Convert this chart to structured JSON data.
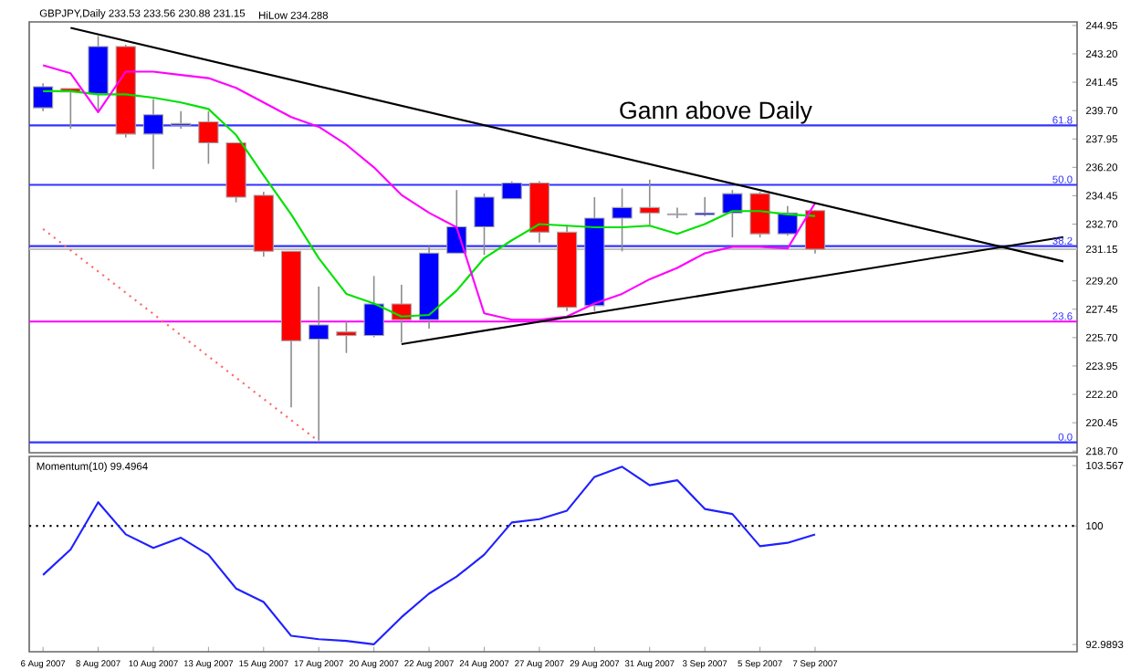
{
  "chart_data": [
    {
      "type": "candlestick",
      "title": "Gann above Daily",
      "annotations": [
        "GBPJPY,Daily  233.53 233.56 230.88 231.15",
        "HiLow 234.288",
        {
          "text": "61.8",
          "y": 238.79
        },
        {
          "text": "50.0",
          "y": 235.12
        },
        {
          "text": "38.2",
          "y": 231.34
        },
        {
          "text": "23.6",
          "y": 226.69
        },
        {
          "text": "0.0",
          "y": 219.24
        }
      ],
      "categories": [
        null,
        null,
        null,
        null,
        null,
        null,
        null,
        null,
        null,
        null,
        null,
        null,
        null,
        null,
        null,
        null,
        null,
        null,
        null,
        null,
        null,
        null,
        null,
        null,
        null,
        null,
        null,
        null,
        null,
        null,
        null,
        null,
        null,
        null,
        null,
        null,
        null,
        null
      ],
      "ohlc": [
        [
          239.87,
          241.39,
          239.66,
          241.17
        ],
        [
          241.06,
          241.06,
          238.58,
          240.85
        ],
        [
          240.74,
          244.3,
          239.66,
          243.65
        ],
        [
          243.65,
          243.76,
          238.04,
          238.25
        ],
        [
          238.25,
          240.41,
          236.09,
          239.44
        ],
        [
          238.79,
          239.66,
          238.58,
          238.9
        ],
        [
          239.01,
          239.66,
          236.42,
          237.71
        ],
        [
          237.71,
          237.71,
          234.04,
          234.36
        ],
        [
          234.47,
          234.69,
          230.69,
          231.02
        ],
        [
          231.02,
          231.02,
          221.4,
          225.51
        ],
        [
          225.61,
          228.85,
          219.35,
          226.48
        ],
        [
          226.05,
          226.69,
          224.75,
          225.83
        ],
        [
          225.83,
          229.5,
          225.72,
          227.77
        ],
        [
          227.77,
          228.96,
          225.4,
          226.8
        ],
        [
          226.8,
          231.34,
          226.26,
          230.91
        ],
        [
          230.91,
          234.8,
          230.91,
          232.53
        ],
        [
          232.53,
          234.58,
          230.8,
          234.36
        ],
        [
          234.26,
          235.34,
          234.26,
          235.23
        ],
        [
          235.23,
          235.34,
          231.56,
          232.2
        ],
        [
          232.2,
          232.64,
          227.34,
          227.56
        ],
        [
          227.67,
          234.36,
          227.34,
          233.07
        ],
        [
          233.07,
          234.9,
          231.02,
          233.72
        ],
        [
          233.72,
          235.44,
          232.64,
          233.39
        ],
        [
          233.28,
          233.72,
          233.07,
          233.33
        ],
        [
          233.28,
          234.36,
          233.18,
          233.39
        ],
        [
          233.39,
          234.8,
          231.88,
          234.58
        ],
        [
          234.58,
          234.69,
          231.88,
          232.1
        ],
        [
          232.1,
          233.82,
          231.99,
          233.39
        ],
        [
          233.53,
          233.56,
          230.88,
          231.15
        ],
        null,
        null,
        null,
        null,
        null,
        null,
        null,
        null,
        null
      ],
      "colors": [
        "#0000ff",
        "#ff0000",
        "#0000ff",
        "#ff0000",
        "#0000ff",
        "#0000ff",
        "#ff0000",
        "#ff0000",
        "#ff0000",
        "#ff0000",
        "#0000ff",
        "#ff0000",
        "#0000ff",
        "#ff0000",
        "#0000ff",
        "#0000ff",
        "#0000ff",
        "#0000ff",
        "#ff0000",
        "#ff0000",
        "#0000ff",
        "#0000ff",
        "#ff0000",
        "#0000ff",
        "#0000ff",
        "#0000ff",
        "#ff0000",
        "#0000ff",
        "#ff0000",
        null,
        null,
        null,
        null,
        null,
        null,
        null,
        null,
        null
      ],
      "series": [
        {
          "type": "line",
          "color": "#00e000",
          "values": [
            240.9,
            240.9,
            240.7,
            240.7,
            240.5,
            240.2,
            239.8,
            238.2,
            235.7,
            233.3,
            230.6,
            228.4,
            227.8,
            227.0,
            227.1,
            228.6,
            230.6,
            231.7,
            232.7,
            232.6,
            232.5,
            232.5,
            232.6,
            232.1,
            232.7,
            233.5,
            233.5,
            233.3,
            233.2,
            null,
            null,
            null,
            null,
            null,
            null,
            null,
            null,
            null
          ]
        },
        {
          "type": "line",
          "color": "#ff00ff",
          "values": [
            242.5,
            242.0,
            239.6,
            242.1,
            242.1,
            241.9,
            241.7,
            241.1,
            240.2,
            239.3,
            238.7,
            237.6,
            236.2,
            234.5,
            233.4,
            232.5,
            227.2,
            226.8,
            226.8,
            227.0,
            227.8,
            228.4,
            229.3,
            230.0,
            230.9,
            231.3,
            231.3,
            231.2,
            234.0,
            null,
            null,
            null,
            null,
            null,
            null,
            null,
            null,
            null
          ]
        },
        {
          "type": "line",
          "color": "#000000",
          "values": [
            null,
            244.8,
            null,
            null,
            null,
            null,
            null,
            null,
            null,
            null,
            null,
            null,
            null,
            null,
            null,
            null,
            null,
            null,
            null,
            null,
            null,
            null,
            null,
            null,
            null,
            null,
            null,
            null,
            null,
            null,
            null,
            null,
            null,
            null,
            null,
            null,
            null,
            230.4
          ]
        },
        {
          "type": "line",
          "color": "#000000",
          "values": [
            null,
            null,
            null,
            null,
            null,
            null,
            null,
            null,
            null,
            null,
            null,
            null,
            null,
            225.3,
            null,
            null,
            null,
            null,
            null,
            null,
            null,
            null,
            null,
            null,
            null,
            null,
            null,
            null,
            null,
            null,
            null,
            null,
            null,
            null,
            null,
            null,
            null,
            231.9
          ]
        },
        {
          "type": "line",
          "color": "#ff6666",
          "line_style": "dotted",
          "values": [
            232.4,
            null,
            null,
            null,
            null,
            null,
            null,
            null,
            null,
            null,
            219.3,
            null,
            null,
            null,
            null,
            null,
            null,
            null,
            null,
            null,
            null,
            null,
            null,
            null,
            null,
            null,
            null,
            null,
            null,
            null,
            null,
            null,
            null,
            null,
            null,
            null,
            null,
            null
          ]
        }
      ],
      "ref_lines": [
        {
          "axis": "y",
          "value": 238.79,
          "color": "#3333ff"
        },
        {
          "axis": "y",
          "value": 235.12,
          "color": "#3333ff"
        },
        {
          "axis": "y",
          "value": 231.34,
          "color": "#3333ff"
        },
        {
          "axis": "y",
          "value": 231.15,
          "color": "#c0c0c0"
        },
        {
          "axis": "y",
          "value": 226.69,
          "color": "#ff00ff"
        },
        {
          "axis": "y",
          "value": 219.24,
          "color": "#3333ff"
        }
      ],
      "ylim": [
        218.6,
        245.17
      ],
      "yticks": [
        {
          "value": 218.7,
          "label": "218.70"
        },
        {
          "value": 220.45,
          "label": "220.45"
        },
        {
          "value": 222.2,
          "label": "222.20"
        },
        {
          "value": 223.95,
          "label": "223.95"
        },
        {
          "value": 225.7,
          "label": "225.70"
        },
        {
          "value": 227.45,
          "label": "227.45"
        },
        {
          "value": 229.2,
          "label": "229.20"
        },
        {
          "value": 231.15,
          "label": "231.15"
        },
        {
          "value": 232.7,
          "label": "232.70"
        },
        {
          "value": 234.45,
          "label": "234.45"
        },
        {
          "value": 236.2,
          "label": "236.20"
        },
        {
          "value": 237.95,
          "label": "237.95"
        },
        {
          "value": 239.7,
          "label": "239.70"
        },
        {
          "value": 241.45,
          "label": "241.45"
        },
        {
          "value": 243.2,
          "label": "243.20"
        },
        {
          "value": 244.95,
          "label": "244.95"
        }
      ],
      "tick_labels": "y"
    },
    {
      "type": "line",
      "title": "Momentum(10) 99.4964",
      "categories": [
        "6 Aug 2007",
        null,
        "8 Aug 2007",
        null,
        "10 Aug 2007",
        null,
        "13 Aug 2007",
        null,
        "15 Aug 2007",
        null,
        "17 Aug 2007",
        null,
        "20 Aug 2007",
        null,
        "22 Aug 2007",
        null,
        "24 Aug 2007",
        null,
        "27 Aug 2007",
        null,
        "29 Aug 2007",
        null,
        "31 Aug 2007",
        null,
        "3 Sep 2007",
        null,
        "5 Sep 2007",
        null,
        "7 Sep 2007",
        null,
        null,
        null,
        null,
        null,
        null,
        null,
        null,
        null
      ],
      "color": "#2020ff",
      "values": [
        97.1,
        98.6,
        101.4,
        99.5,
        98.7,
        99.3,
        98.3,
        96.3,
        95.5,
        93.5,
        93.3,
        93.2,
        93.0,
        94.6,
        96.0,
        97.0,
        98.3,
        100.2,
        100.4,
        100.9,
        102.9,
        103.5,
        102.4,
        102.7,
        101.0,
        100.7,
        98.8,
        99.0,
        99.4964,
        null,
        null,
        null,
        null,
        null,
        null,
        null,
        null,
        null
      ],
      "ref_lines": [
        {
          "axis": "y",
          "value": 100,
          "color": "#000000",
          "line_style": "dotted"
        }
      ],
      "ylim": [
        92.56,
        104.11
      ],
      "yticks": [
        92.9893,
        100,
        103.567
      ]
    }
  ]
}
